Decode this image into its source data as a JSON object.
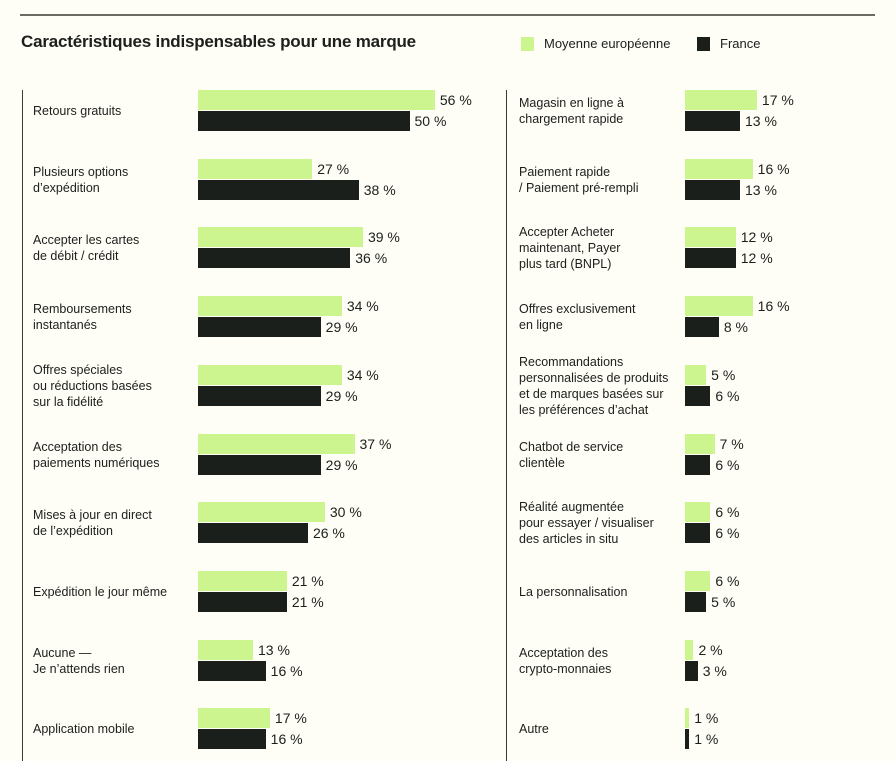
{
  "chart_data": {
    "type": "bar",
    "orientation": "horizontal",
    "title": "Caractéristiques indispensables pour une marque",
    "legend_placement": "top-right",
    "unit": "%",
    "colors": {
      "Moyenne européenne": "#ccf58f",
      "France": "#1b1f1b"
    },
    "series_names": [
      "Moyenne européenne",
      "France"
    ],
    "left": {
      "categories": [
        "Retours gratuits",
        "Plusieurs options\nd’expédition",
        "Accepter les cartes\nde débit / crédit",
        "Remboursements\ninstantanés",
        "Offres spéciales\nou réductions basées\nsur la fidélité",
        "Acceptation des\npaiements numériques",
        "Mises à jour en direct\nde l’expédition",
        "Expédition le jour même",
        "Aucune —\nJe n’attends rien",
        "Application mobile"
      ],
      "series": [
        {
          "name": "Moyenne européenne",
          "values": [
            56,
            27,
            39,
            34,
            34,
            37,
            30,
            21,
            13,
            17
          ]
        },
        {
          "name": "France",
          "values": [
            50,
            38,
            36,
            29,
            29,
            29,
            26,
            21,
            16,
            16
          ]
        }
      ]
    },
    "right": {
      "categories": [
        "Magasin en ligne à\nchargement rapide",
        "Paiement rapide\n/ Paiement pré-rempli",
        "Accepter Acheter\nmaintenant, Payer\nplus tard (BNPL)",
        "Offres exclusivement\nen ligne",
        "Recommandations\npersonnalisées de produits\net de marques basées sur\nles préférences d’achat",
        "Chatbot de service\nclientèle",
        "Réalité augmentée\npour essayer / visualiser\ndes articles in situ",
        "La personnalisation",
        "Acceptation des\ncrypto-monnaies",
        "Autre"
      ],
      "series": [
        {
          "name": "Moyenne européenne",
          "values": [
            17,
            16,
            12,
            16,
            5,
            7,
            6,
            6,
            2,
            1
          ]
        },
        {
          "name": "France",
          "values": [
            13,
            13,
            12,
            8,
            6,
            6,
            6,
            5,
            3,
            1
          ]
        }
      ]
    }
  }
}
